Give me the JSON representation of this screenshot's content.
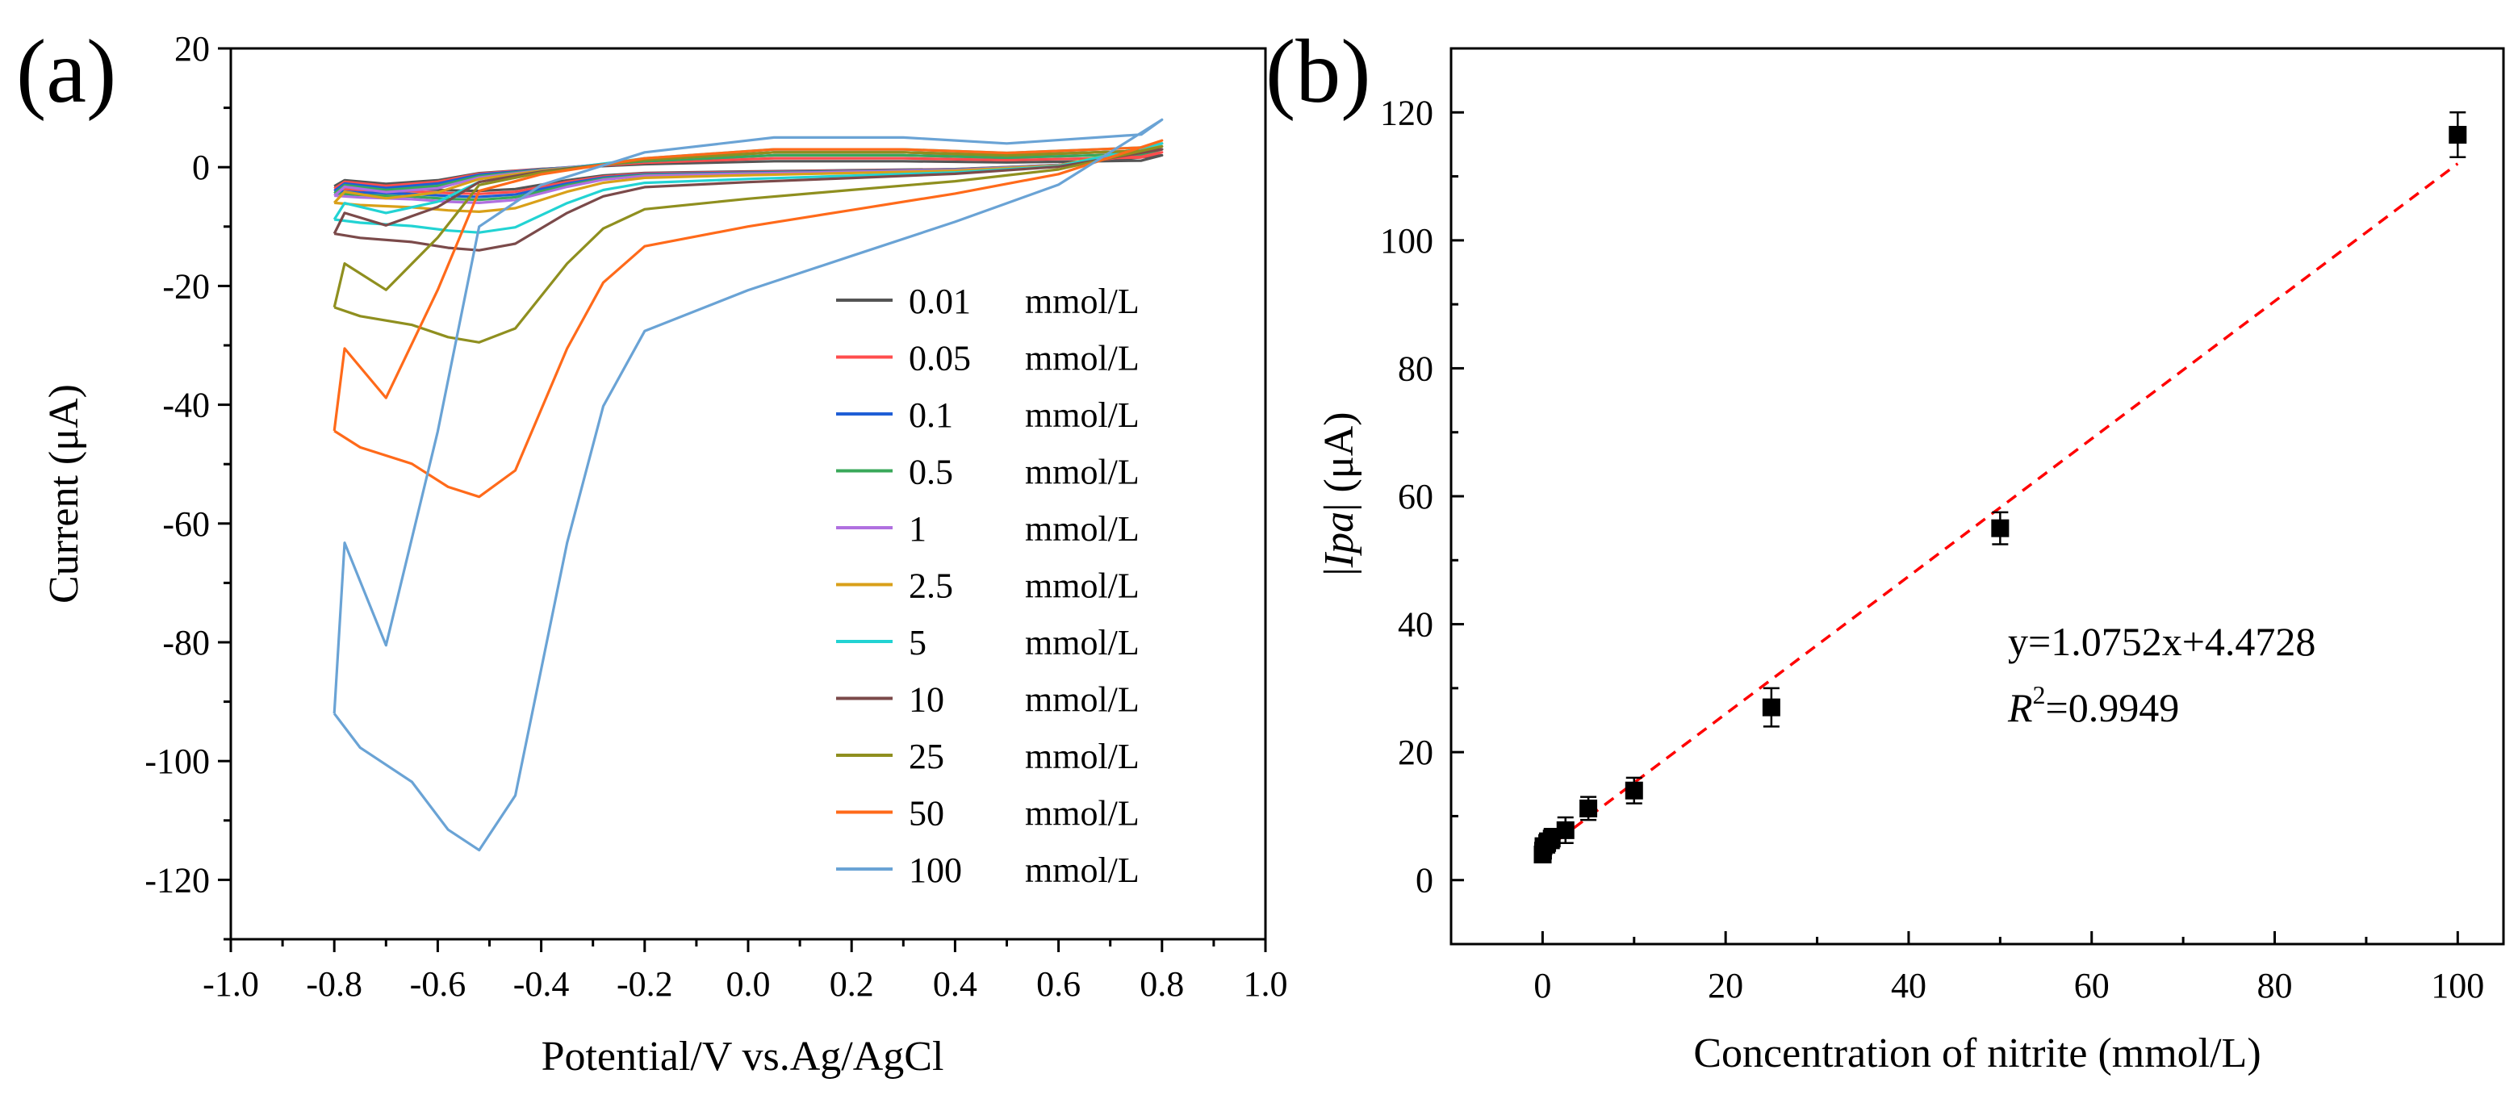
{
  "figure": {
    "panel_a_label": "(a)",
    "panel_b_label": "(b)"
  },
  "chart_data": [
    {
      "type": "line",
      "panel": "a",
      "xlabel": "Potential/V vs.Ag/AgCl",
      "ylabel": "Current (μA)",
      "xlim": [
        -1.0,
        1.0
      ],
      "ylim": [
        -130,
        20
      ],
      "xticks": [
        -1.0,
        -0.8,
        -0.6,
        -0.4,
        -0.2,
        0.0,
        0.2,
        0.4,
        0.6,
        0.8,
        1.0
      ],
      "xtick_labels": [
        "-1.0",
        "-0.8",
        "-0.6",
        "-0.4",
        "-0.2",
        "0.0",
        "0.2",
        "0.4",
        "0.6",
        "0.8",
        "1.0"
      ],
      "yticks": [
        -120,
        -100,
        -80,
        -60,
        -40,
        -20,
        0,
        20
      ],
      "ytick_labels": [
        "-120",
        "-100",
        "-80",
        "-60",
        "-40",
        "-20",
        "0",
        "20"
      ],
      "legend_position": "bottom-right",
      "series": [
        {
          "name": "0.01 mmol/L",
          "label_num": "0.01",
          "label_unit": "mmol/L",
          "color": "#555555",
          "cathodic_start": -3.0,
          "peak_current": -4.0,
          "return_start": -2.0,
          "top_current": 1.0,
          "end_current": 2.0
        },
        {
          "name": "0.05 mmol/L",
          "label_num": "0.05",
          "label_unit": "mmol/L",
          "color": "#ff4d4d",
          "cathodic_start": -3.5,
          "peak_current": -4.5,
          "return_start": -2.2,
          "top_current": 1.5,
          "end_current": 2.5
        },
        {
          "name": "0.1 mmol/L",
          "label_num": "0.1",
          "label_unit": "mmol/L",
          "color": "#1f5fd6",
          "cathodic_start": -4.0,
          "peak_current": -5.0,
          "return_start": -2.5,
          "top_current": 2.0,
          "end_current": 3.0
        },
        {
          "name": "0.5 mmol/L",
          "label_num": "0.5",
          "label_unit": "mmol/L",
          "color": "#3aa85a",
          "cathodic_start": -4.5,
          "peak_current": -5.5,
          "return_start": -3.0,
          "top_current": 2.0,
          "end_current": 3.0
        },
        {
          "name": "1 mmol/L",
          "label_num": "1",
          "label_unit": "mmol/L",
          "color": "#b070e0",
          "cathodic_start": -5.0,
          "peak_current": -6.0,
          "return_start": -3.5,
          "top_current": 2.5,
          "end_current": 3.5
        },
        {
          "name": "2.5 mmol/L",
          "label_num": "2.5",
          "label_unit": "mmol/L",
          "color": "#d9a019",
          "cathodic_start": -6.5,
          "peak_current": -7.5,
          "return_start": -4.0,
          "top_current": 2.5,
          "end_current": 4.0
        },
        {
          "name": "5 mmol/L",
          "label_num": "5",
          "label_unit": "mmol/L",
          "color": "#22d3d3",
          "cathodic_start": -9.0,
          "peak_current": -11.0,
          "return_start": -5.0,
          "top_current": 3.0,
          "end_current": 4.0
        },
        {
          "name": "10 mmol/L",
          "label_num": "10",
          "label_unit": "mmol/L",
          "color": "#7b4a4a",
          "cathodic_start": -11.0,
          "peak_current": -14.0,
          "return_start": -5.0,
          "top_current": 2.5,
          "end_current": 3.0
        },
        {
          "name": "25 mmol/L",
          "label_num": "25",
          "label_unit": "mmol/L",
          "color": "#8f8f1f",
          "cathodic_start": -24.0,
          "peak_current": -29.5,
          "return_start": -6.0,
          "top_current": 2.5,
          "end_current": 3.5
        },
        {
          "name": "50 mmol/L",
          "label_num": "50",
          "label_unit": "mmol/L",
          "color": "#ff6a1a",
          "cathodic_start": -45.5,
          "peak_current": -55.5,
          "return_start": -8.0,
          "top_current": 3.0,
          "end_current": 4.5
        },
        {
          "name": "100 mmol/L",
          "label_num": "100",
          "label_unit": "mmol/L",
          "color": "#6aa3d5",
          "cathodic_start": -94.5,
          "peak_current": -115.0,
          "return_start": -20.0,
          "top_current": 5.0,
          "end_current": 8.0
        }
      ]
    },
    {
      "type": "scatter",
      "panel": "b",
      "xlabel": "Concentration of nitrite (mmol/L)",
      "ylabel_parts": {
        "open": "|",
        "italic": "Ipa",
        "close": "| (μA)"
      },
      "xlim": [
        -10,
        105
      ],
      "ylim": [
        -10,
        130
      ],
      "xticks": [
        0,
        20,
        40,
        60,
        80,
        100
      ],
      "xtick_labels": [
        "0",
        "20",
        "40",
        "60",
        "80",
        "100"
      ],
      "yticks": [
        0,
        20,
        40,
        60,
        80,
        100,
        120
      ],
      "ytick_labels": [
        "0",
        "20",
        "40",
        "60",
        "80",
        "100",
        "120"
      ],
      "points": [
        {
          "x": 0.01,
          "y": 4.0,
          "err": 1.2
        },
        {
          "x": 0.05,
          "y": 4.6,
          "err": 1.2
        },
        {
          "x": 0.1,
          "y": 5.3,
          "err": 1.2
        },
        {
          "x": 0.5,
          "y": 5.8,
          "err": 1.5
        },
        {
          "x": 1,
          "y": 6.5,
          "err": 1.5
        },
        {
          "x": 2.5,
          "y": 7.8,
          "err": 2.0
        },
        {
          "x": 5,
          "y": 11.2,
          "err": 1.8
        },
        {
          "x": 10,
          "y": 14.0,
          "err": 2.0
        },
        {
          "x": 25,
          "y": 27.0,
          "err": 3.0
        },
        {
          "x": 50,
          "y": 55.0,
          "err": 2.5
        },
        {
          "x": 100,
          "y": 116.5,
          "err": 3.5
        }
      ],
      "fit": {
        "slope": 1.0752,
        "intercept": 4.4728,
        "x_range": [
          0,
          100
        ],
        "color": "#ff0000"
      },
      "equation_text": "y=1.0752x+4.4728",
      "r2_parts": {
        "r": "R",
        "sup": "2",
        "value": "=0.9949"
      }
    }
  ]
}
